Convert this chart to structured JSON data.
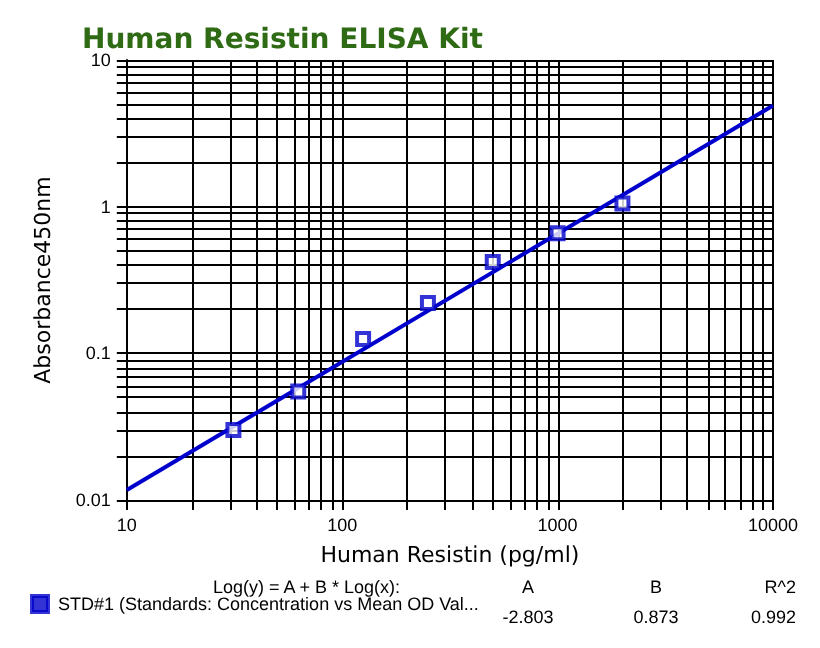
{
  "chart_data": {
    "type": "scatter",
    "title": "Human Resistin ELISA Kit",
    "xlabel": "Human Resistin (pg/ml)",
    "ylabel": "Absorbance450nm",
    "log": "xy",
    "xlim": [
      10,
      10000
    ],
    "xticks": [
      10,
      100,
      1000,
      10000
    ],
    "ylim": [
      0.01,
      10
    ],
    "yticks": [
      0.01,
      0.1,
      1,
      10
    ],
    "grid": true,
    "legend": "bottom left",
    "marker": "square",
    "series": [
      {
        "name": "STD#1 (Standards: Concentration vs Mean OD Val...",
        "color": "#0000cc",
        "x": [
          31.25,
          62.5,
          125,
          250,
          500,
          1000,
          2000
        ],
        "values": [
          0.03,
          0.055,
          0.125,
          0.22,
          0.42,
          0.66,
          1.05
        ]
      },
      {
        "type": "line",
        "color": "#0000cc",
        "marker": "none",
        "x": [
          10,
          10000
        ],
        "values": [
          0.0117,
          4.89
        ]
      }
    ],
    "annotations": [
      "Log(y) = A + B * Log(x):",
      "A",
      "B",
      "R^2",
      "-2.803",
      "0.873",
      "0.992"
    ]
  }
}
